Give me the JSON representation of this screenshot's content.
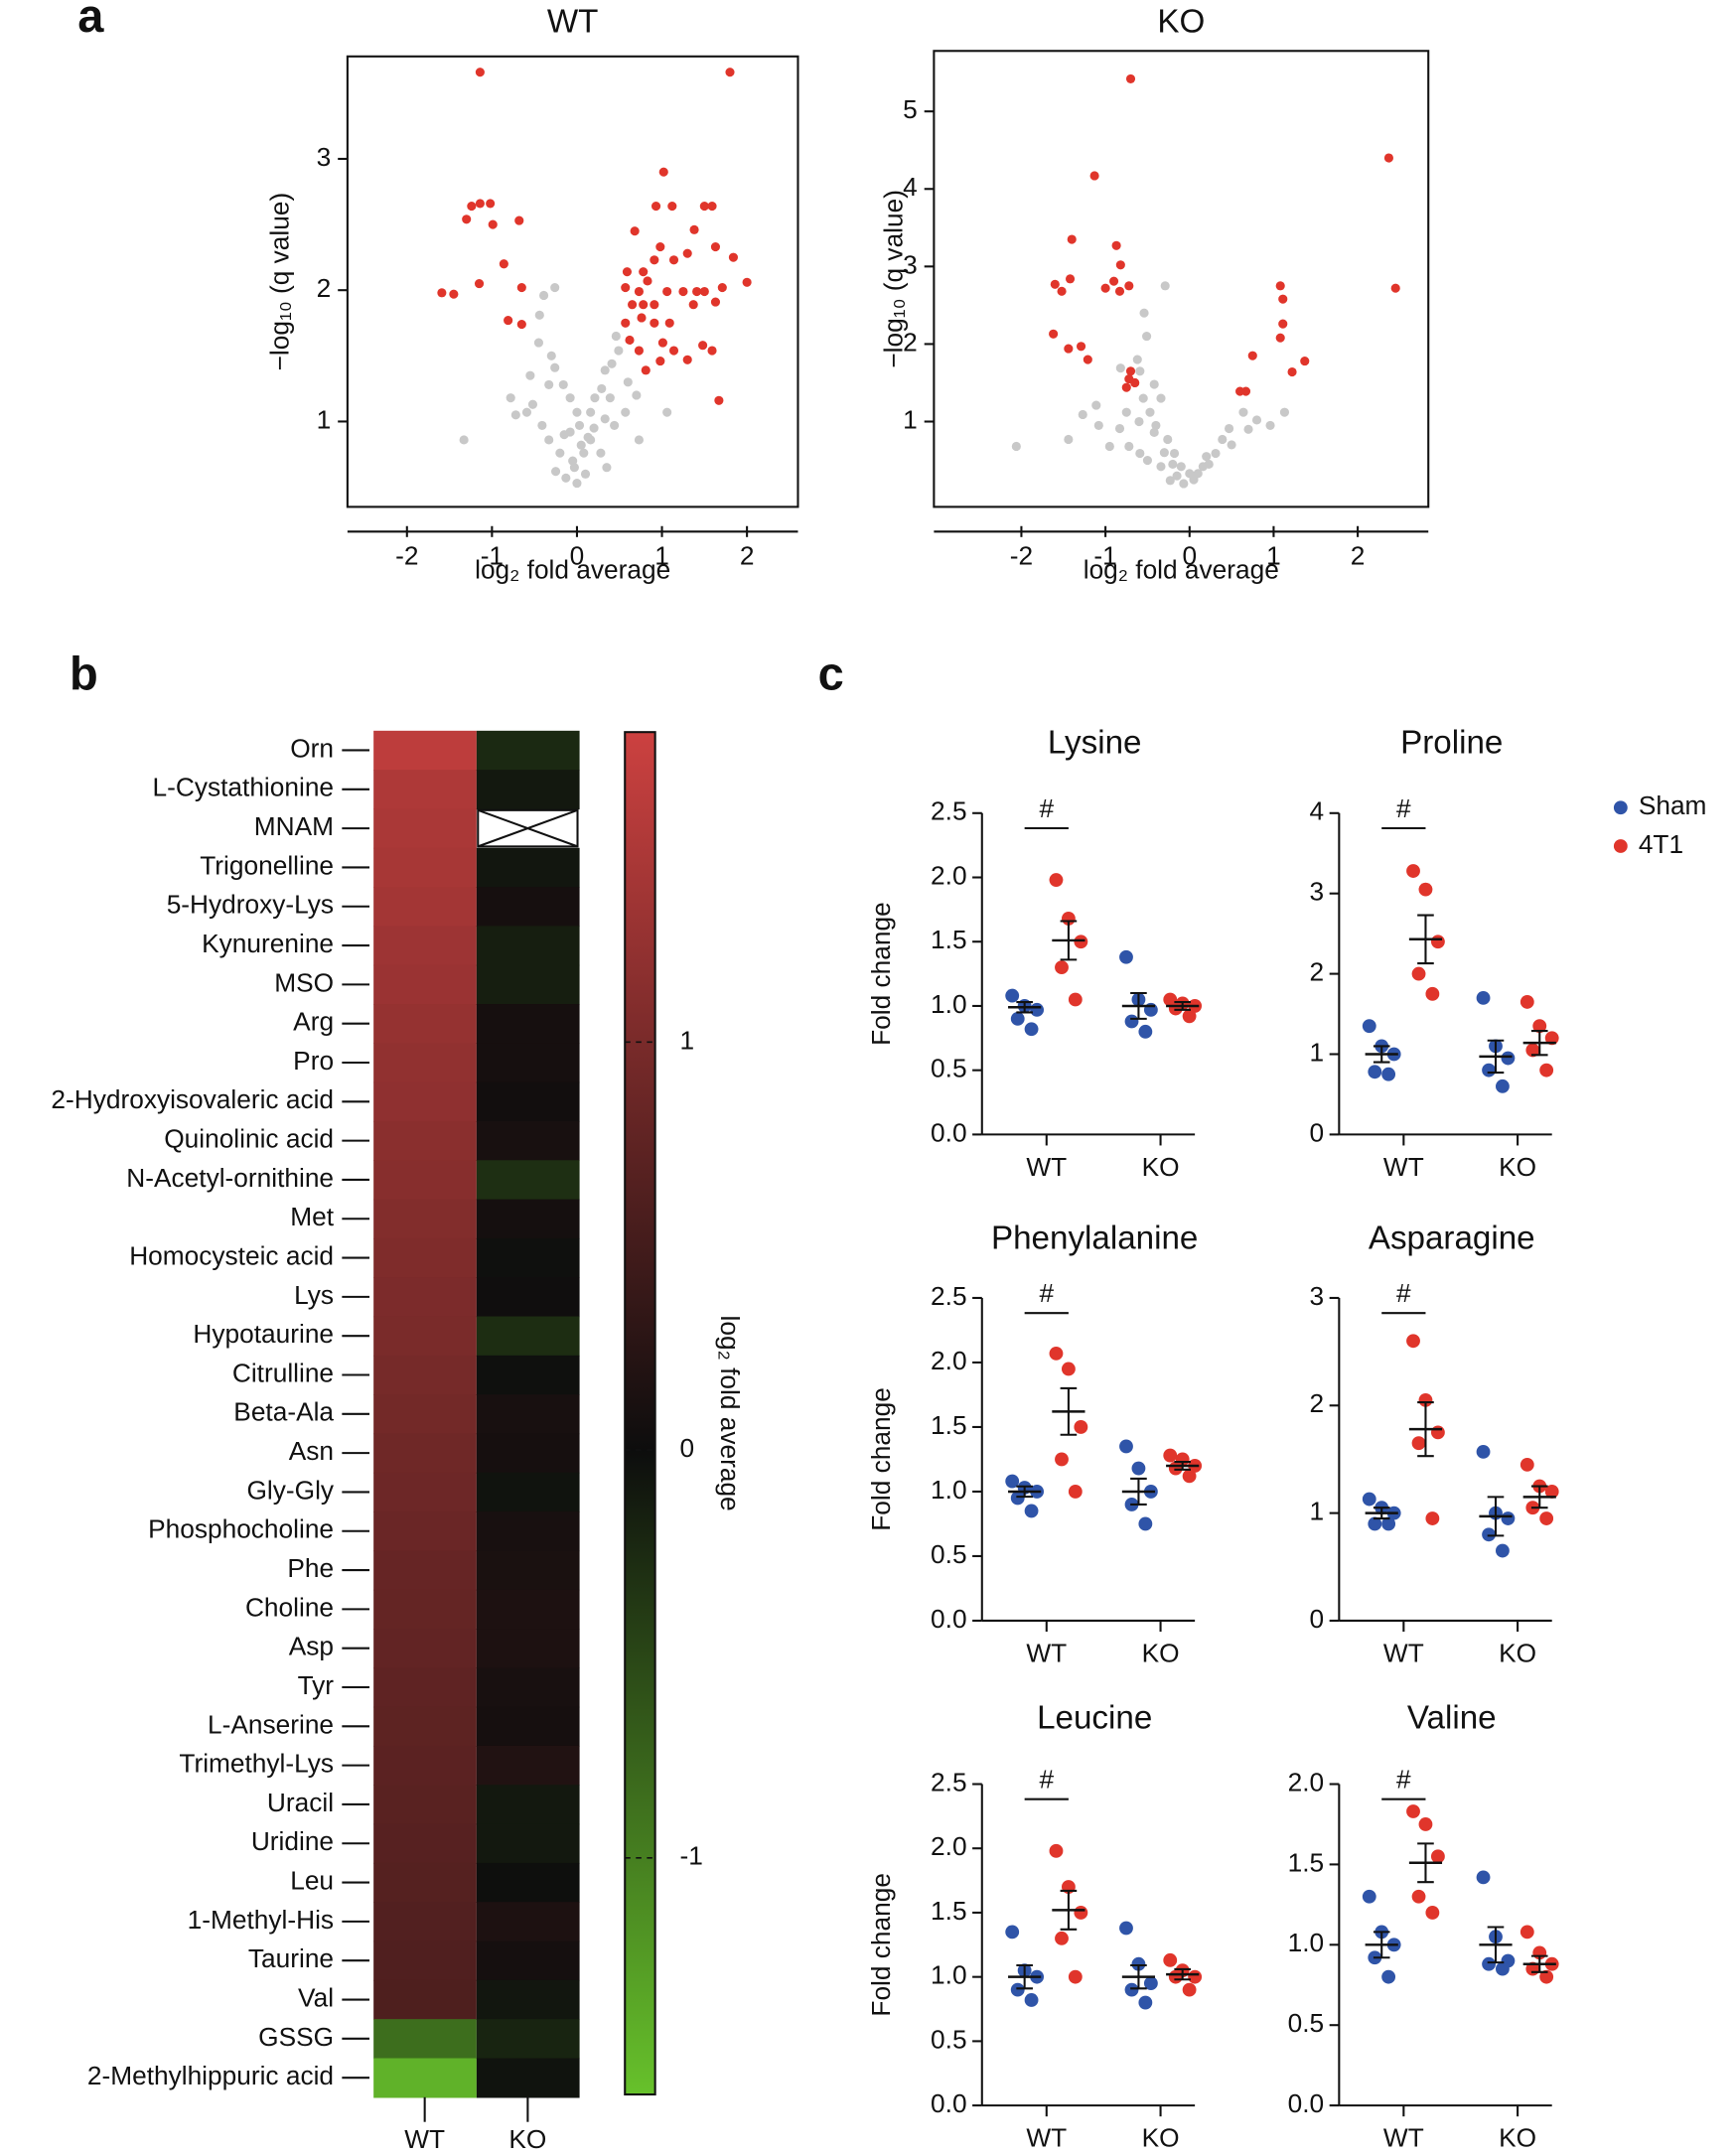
{
  "panel_labels": [
    "a",
    "b",
    "c"
  ],
  "legend": {
    "position": "right",
    "series": [
      {
        "name": "Sham",
        "color": "#2f54a8"
      },
      {
        "name": "4T1",
        "color": "#e0352b"
      }
    ]
  },
  "chart_data": [
    {
      "type": "scatter",
      "title": "WT",
      "xlabel": "log₂ fold average",
      "ylabel": "−log₁₀ (q value)",
      "xlim": [
        -2.7,
        2.6
      ],
      "ylim": [
        0.35,
        3.78
      ],
      "xticks": [
        -2,
        -1,
        0,
        1,
        2
      ],
      "yticks": [
        1,
        2,
        3
      ],
      "series": [
        {
          "color": "#c8c8c8",
          "x": [
            -0.26,
            -0.39,
            -0.44,
            -0.26,
            -0.33,
            -0.16,
            -0.78,
            -0.52,
            -0.59,
            -0.08,
            0,
            0.03,
            0.16,
            0.21,
            0.29,
            0.33,
            0.41,
            0.49,
            0.46,
            0.16,
            0.08,
            -0.03,
            -0.13,
            0,
            -0.2,
            -0.33,
            -0.41,
            0.33,
            0.57,
            0.73,
            1.06,
            -1.33,
            -0.72,
            -0.08,
            0.13,
            0.39,
            0.28,
            0.44,
            -0.3,
            -0.55,
            0.1,
            -0.05,
            0.2,
            0.05,
            -0.15,
            0.6,
            0.7,
            -0.45,
            0.35,
            -0.25
          ],
          "values": [
            2.02,
            1.96,
            1.81,
            1.41,
            1.28,
            1.28,
            1.18,
            1.13,
            1.07,
            1.18,
            1.07,
            0.97,
            1.07,
            1.18,
            1.25,
            1.39,
            1.44,
            1.54,
            1.65,
            0.86,
            0.76,
            0.65,
            0.57,
            0.53,
            0.76,
            0.86,
            0.97,
            1.02,
            1.07,
            0.86,
            1.07,
            0.86,
            1.05,
            0.92,
            0.88,
            1.18,
            0.76,
            0.97,
            1.5,
            1.35,
            0.6,
            0.7,
            0.95,
            0.82,
            0.9,
            1.3,
            1.2,
            1.6,
            0.65,
            0.62
          ]
        },
        {
          "color": "#e0352b",
          "x": [
            -1.14,
            1.8,
            1.02,
            -1.24,
            -1.14,
            -1.02,
            -1.3,
            -0.68,
            -0.99,
            -0.86,
            -1.15,
            -1.59,
            -1.45,
            -0.65,
            -0.81,
            -0.65,
            0.93,
            1.12,
            1.5,
            1.59,
            0.68,
            1.38,
            0.98,
            1.63,
            0.59,
            0.78,
            0.91,
            1.14,
            1.3,
            1.84,
            0.57,
            0.73,
            0.83,
            1.06,
            1.25,
            1.41,
            1.5,
            1.71,
            2.0,
            0.65,
            0.78,
            0.91,
            1.37,
            1.63,
            0.57,
            0.76,
            0.91,
            1.09,
            1.01,
            1.14,
            1.48,
            0.62,
            0.73,
            1.3,
            1.59,
            0.81,
            0.98,
            1.67
          ],
          "values": [
            3.66,
            3.66,
            2.9,
            2.64,
            2.66,
            2.66,
            2.54,
            2.53,
            2.5,
            2.2,
            2.05,
            1.98,
            1.97,
            2.02,
            1.77,
            1.74,
            2.64,
            2.64,
            2.64,
            2.64,
            2.45,
            2.46,
            2.33,
            2.33,
            2.14,
            2.14,
            2.23,
            2.23,
            2.28,
            2.25,
            2.02,
            1.99,
            2.07,
            1.99,
            1.99,
            1.99,
            1.99,
            2.02,
            2.06,
            1.89,
            1.89,
            1.89,
            1.89,
            1.91,
            1.75,
            1.79,
            1.75,
            1.75,
            1.6,
            1.54,
            1.58,
            1.62,
            1.54,
            1.47,
            1.54,
            1.39,
            1.46,
            1.16
          ]
        }
      ]
    },
    {
      "type": "scatter",
      "title": "KO",
      "xlabel": "log₂ fold average",
      "ylabel": "−log₁₀ (q value)",
      "xlim": [
        -3.04,
        2.84
      ],
      "ylim": [
        -0.1,
        5.78
      ],
      "xticks": [
        -2,
        -1,
        0,
        1,
        2
      ],
      "yticks": [
        1,
        2,
        3,
        4,
        5
      ],
      "series": [
        {
          "color": "#c8c8c8",
          "x": [
            -0.29,
            -0.54,
            -0.51,
            -0.62,
            -0.82,
            -0.59,
            -0.42,
            -0.34,
            -0.75,
            -1.11,
            -1.27,
            -1.44,
            -1.08,
            -0.83,
            -0.42,
            -0.26,
            -0.18,
            -0.1,
            0,
            0.1,
            0.23,
            0.31,
            0.39,
            0.47,
            0.64,
            0.8,
            0.96,
            1.13,
            -0.34,
            -0.23,
            -0.07,
            0.16,
            -2.06,
            -0.72,
            -0.59,
            -0.95,
            -0.47,
            -0.5,
            -0.3,
            0.05,
            -0.15,
            0.2,
            -0.6,
            -0.4,
            -0.55,
            0.5,
            -0.2,
            0.7
          ],
          "values": [
            2.75,
            2.4,
            2.1,
            1.8,
            1.69,
            1.65,
            1.48,
            1.3,
            1.12,
            1.21,
            1.09,
            0.77,
            0.95,
            0.91,
            0.86,
            0.77,
            0.59,
            0.42,
            0.33,
            0.33,
            0.45,
            0.59,
            0.77,
            0.91,
            1.12,
            1.02,
            0.95,
            1.12,
            0.42,
            0.24,
            0.2,
            0.42,
            0.68,
            0.68,
            0.59,
            0.68,
            1.12,
            0.5,
            0.6,
            0.25,
            0.3,
            0.55,
            1.0,
            0.95,
            1.3,
            0.7,
            0.45,
            0.9
          ]
        },
        {
          "color": "#e0352b",
          "x": [
            -0.7,
            2.37,
            -1.13,
            -1.4,
            -0.87,
            -0.82,
            -0.9,
            -1.0,
            -0.72,
            -0.83,
            -1.6,
            -1.42,
            -1.52,
            2.45,
            1.08,
            1.11,
            1.11,
            -1.62,
            -1.44,
            -1.21,
            -1.29,
            -0.7,
            -0.65,
            -0.75,
            -0.72,
            1.37,
            1.22,
            0.75,
            0.67,
            0.6,
            1.08
          ],
          "values": [
            5.42,
            4.4,
            4.17,
            3.35,
            3.27,
            3.02,
            2.81,
            2.72,
            2.75,
            2.68,
            2.77,
            2.84,
            2.68,
            2.72,
            2.75,
            2.58,
            2.26,
            2.13,
            1.94,
            1.8,
            1.97,
            1.65,
            1.5,
            1.44,
            1.55,
            1.78,
            1.64,
            1.85,
            1.39,
            1.39,
            2.08
          ]
        }
      ]
    },
    {
      "type": "heatmap",
      "columns": [
        "WT",
        "KO"
      ],
      "categories": [
        "Orn",
        "L-Cystathionine",
        "MNAM",
        "Trigonelline",
        "5-Hydroxy-Lys",
        "Kynurenine",
        "MSO",
        "Arg",
        "Pro",
        "2-Hydroxyisovaleric acid",
        "Quinolinic acid",
        "N-Acetyl-ornithine",
        "Met",
        "Homocysteic acid",
        "Lys",
        "Hypotaurine",
        "Citrulline",
        "Beta-Ala",
        "Asn",
        "Gly-Gly",
        "Phosphocholine",
        "Phe",
        "Choline",
        "Asp",
        "Tyr",
        "L-Anserine",
        "Trimethyl-Lys",
        "Uracil",
        "Uridine",
        "Leu",
        "1-Methyl-His",
        "Taurine",
        "Val",
        "GSSG",
        "2-Methylhippuric acid"
      ],
      "values": [
        [
          1.62,
          1.48,
          1.45,
          1.42,
          1.38,
          1.33,
          1.3,
          1.25,
          1.22,
          1.2,
          1.15,
          1.12,
          1.08,
          1.05,
          1.02,
          1.0,
          0.97,
          0.94,
          0.9,
          0.88,
          0.86,
          0.82,
          0.8,
          0.78,
          0.76,
          0.74,
          0.72,
          0.7,
          0.68,
          0.66,
          0.64,
          0.62,
          0.6,
          -0.85,
          -1.45
        ],
        [
          -0.25,
          -0.1,
          null,
          -0.08,
          0.08,
          -0.15,
          -0.15,
          0.08,
          0.08,
          0.05,
          0.1,
          -0.3,
          0.07,
          -0.03,
          0.03,
          -0.28,
          -0.03,
          0.1,
          0.08,
          -0.05,
          0.1,
          0.12,
          0.15,
          0.15,
          0.1,
          0.08,
          0.18,
          -0.1,
          -0.1,
          -0.02,
          0.15,
          0.07,
          -0.08,
          -0.2,
          -0.05
        ]
      ],
      "clim": [
        -1.58,
        1.76
      ],
      "colormap": [
        "#67c12b",
        "#0d0d0d",
        "#cc4140"
      ],
      "colorbar_ticks": [
        1,
        0,
        -1
      ],
      "colorbar_label": "log₂ fold average"
    },
    {
      "type": "dot",
      "title": "Lysine",
      "ylabel": "Fold change",
      "categories": [
        "WT",
        "KO"
      ],
      "ylim": [
        0,
        2.5
      ],
      "yticks": [
        {
          "value": 0,
          "label": "0.0"
        },
        {
          "value": 0.5,
          "label": "0.5"
        },
        {
          "value": 1,
          "label": "1.0"
        },
        {
          "value": 1.5,
          "label": "1.5"
        },
        {
          "value": 2,
          "label": "2.0"
        },
        {
          "value": 2.5,
          "label": "2.5"
        }
      ],
      "series": [
        {
          "values": [
            [
              1.08,
              1.0,
              0.97,
              0.9,
              0.82
            ],
            [
              1.38,
              1.05,
              0.97,
              0.88,
              0.8
            ]
          ],
          "mean": [
            0.99,
            1.0
          ],
          "sem": [
            0.04,
            0.1
          ]
        },
        {
          "values": [
            [
              1.98,
              1.68,
              1.5,
              1.3,
              1.05
            ],
            [
              1.05,
              1.02,
              1.0,
              0.98,
              0.92
            ]
          ],
          "mean": [
            1.51,
            1.0
          ],
          "sem": [
            0.15,
            0.03
          ]
        }
      ],
      "annotations": [
        {
          "text": "#",
          "category": "WT"
        }
      ]
    },
    {
      "type": "dot",
      "title": "Proline",
      "categories": [
        "WT",
        "KO"
      ],
      "ylim": [
        0,
        4
      ],
      "yticks": [
        0,
        1,
        2,
        3,
        4
      ],
      "series": [
        {
          "values": [
            [
              1.35,
              1.1,
              1.0,
              0.78,
              0.75
            ],
            [
              1.7,
              1.1,
              0.95,
              0.8,
              0.6
            ]
          ],
          "mean": [
            1.0,
            0.97
          ],
          "sem": [
            0.1,
            0.2
          ]
        },
        {
          "values": [
            [
              3.28,
              3.05,
              2.4,
              2.0,
              1.75
            ],
            [
              1.65,
              1.35,
              1.2,
              1.05,
              0.8
            ]
          ],
          "mean": [
            2.43,
            1.14
          ],
          "sem": [
            0.3,
            0.15
          ]
        }
      ],
      "annotations": [
        {
          "text": "#",
          "category": "WT"
        }
      ]
    },
    {
      "type": "dot",
      "title": "Phenylalanine",
      "ylabel": "Fold change",
      "categories": [
        "WT",
        "KO"
      ],
      "ylim": [
        0,
        2.5
      ],
      "yticks": [
        {
          "value": 0,
          "label": "0.0"
        },
        {
          "value": 0.5,
          "label": "0.5"
        },
        {
          "value": 1,
          "label": "1.0"
        },
        {
          "value": 1.5,
          "label": "1.5"
        },
        {
          "value": 2,
          "label": "2.0"
        },
        {
          "value": 2.5,
          "label": "2.5"
        }
      ],
      "series": [
        {
          "values": [
            [
              1.08,
              1.03,
              1.0,
              0.95,
              0.85
            ],
            [
              1.35,
              1.18,
              1.0,
              0.9,
              0.75
            ]
          ],
          "mean": [
            1.0,
            1.0
          ],
          "sem": [
            0.04,
            0.1
          ]
        },
        {
          "values": [
            [
              2.07,
              1.95,
              1.5,
              1.25,
              1.0
            ],
            [
              1.28,
              1.25,
              1.2,
              1.18,
              1.12
            ]
          ],
          "mean": [
            1.62,
            1.2
          ],
          "sem": [
            0.18,
            0.03
          ]
        }
      ],
      "annotations": [
        {
          "text": "#",
          "category": "WT"
        }
      ]
    },
    {
      "type": "dot",
      "title": "Asparagine",
      "categories": [
        "WT",
        "KO"
      ],
      "ylim": [
        0,
        3
      ],
      "yticks": [
        0,
        1,
        2,
        3
      ],
      "series": [
        {
          "values": [
            [
              1.13,
              1.05,
              1.0,
              0.9,
              0.9
            ],
            [
              1.57,
              1.0,
              0.95,
              0.8,
              0.65
            ]
          ],
          "mean": [
            1.0,
            0.97
          ],
          "sem": [
            0.05,
            0.18
          ]
        },
        {
          "values": [
            [
              2.6,
              2.05,
              1.75,
              1.65,
              0.95
            ],
            [
              1.45,
              1.25,
              1.2,
              1.05,
              0.95
            ]
          ],
          "mean": [
            1.78,
            1.15
          ],
          "sem": [
            0.25,
            0.1
          ]
        }
      ],
      "annotations": [
        {
          "text": "#",
          "category": "WT"
        }
      ]
    },
    {
      "type": "dot",
      "title": "Leucine",
      "ylabel": "Fold change",
      "categories": [
        "WT",
        "KO"
      ],
      "ylim": [
        0,
        2.5
      ],
      "yticks": [
        {
          "value": 0,
          "label": "0.0"
        },
        {
          "value": 0.5,
          "label": "0.5"
        },
        {
          "value": 1,
          "label": "1.0"
        },
        {
          "value": 1.5,
          "label": "1.5"
        },
        {
          "value": 2,
          "label": "2.0"
        },
        {
          "value": 2.5,
          "label": "2.5"
        }
      ],
      "series": [
        {
          "values": [
            [
              1.35,
              1.05,
              1.0,
              0.9,
              0.82
            ],
            [
              1.38,
              1.1,
              0.95,
              0.9,
              0.8
            ]
          ],
          "mean": [
            1.0,
            1.0
          ],
          "sem": [
            0.09,
            0.09
          ]
        },
        {
          "values": [
            [
              1.98,
              1.7,
              1.5,
              1.3,
              1.0
            ],
            [
              1.13,
              1.05,
              1.0,
              1.0,
              0.9
            ]
          ],
          "mean": [
            1.52,
            1.02
          ],
          "sem": [
            0.15,
            0.04
          ]
        }
      ],
      "annotations": [
        {
          "text": "#",
          "category": "WT"
        }
      ]
    },
    {
      "type": "dot",
      "title": "Valine",
      "categories": [
        "WT",
        "KO"
      ],
      "ylim": [
        0,
        2
      ],
      "yticks": [
        {
          "value": 0,
          "label": "0.0"
        },
        {
          "value": 0.5,
          "label": "0.5"
        },
        {
          "value": 1,
          "label": "1.0"
        },
        {
          "value": 1.5,
          "label": "1.5"
        },
        {
          "value": 2,
          "label": "2.0"
        }
      ],
      "series": [
        {
          "values": [
            [
              1.3,
              1.08,
              1.0,
              0.92,
              0.8
            ],
            [
              1.42,
              1.05,
              0.9,
              0.88,
              0.85
            ]
          ],
          "mean": [
            1.0,
            1.0
          ],
          "sem": [
            0.08,
            0.11
          ]
        },
        {
          "values": [
            [
              1.83,
              1.75,
              1.55,
              1.3,
              1.2
            ],
            [
              1.08,
              0.95,
              0.88,
              0.85,
              0.8
            ]
          ],
          "mean": [
            1.51,
            0.88
          ],
          "sem": [
            0.12,
            0.05
          ]
        }
      ],
      "annotations": [
        {
          "text": "#",
          "category": "WT"
        }
      ]
    }
  ]
}
